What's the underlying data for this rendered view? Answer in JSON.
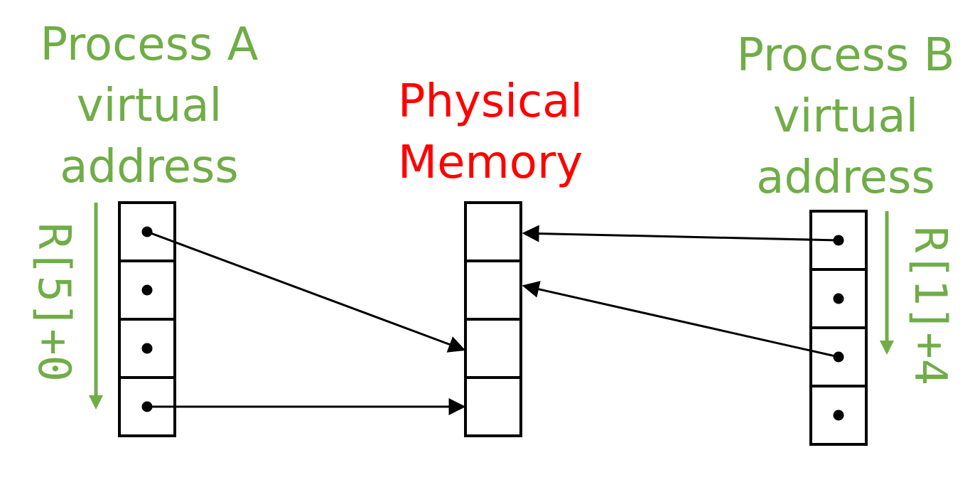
{
  "colors": {
    "process": "#70ad47",
    "memory": "#ff0000",
    "ink": "#000000"
  },
  "process_a": {
    "title_lines": [
      "Process A",
      "virtual",
      "address"
    ],
    "offset_label": "R[5]+0",
    "cell_count": 4
  },
  "physical_memory": {
    "title_lines": [
      "Physical",
      "Memory"
    ],
    "cell_count": 4
  },
  "process_b": {
    "title_lines": [
      "Process B",
      "virtual",
      "address"
    ],
    "offset_label": "R[1]+4",
    "cell_count": 4
  },
  "mappings": [
    {
      "from": "process_a",
      "from_cell": 0,
      "to_cell": 2
    },
    {
      "from": "process_a",
      "from_cell": 3,
      "to_cell": 3
    },
    {
      "from": "process_b",
      "from_cell": 0,
      "to_cell": 0
    },
    {
      "from": "process_b",
      "from_cell": 2,
      "to_cell": 1
    }
  ]
}
